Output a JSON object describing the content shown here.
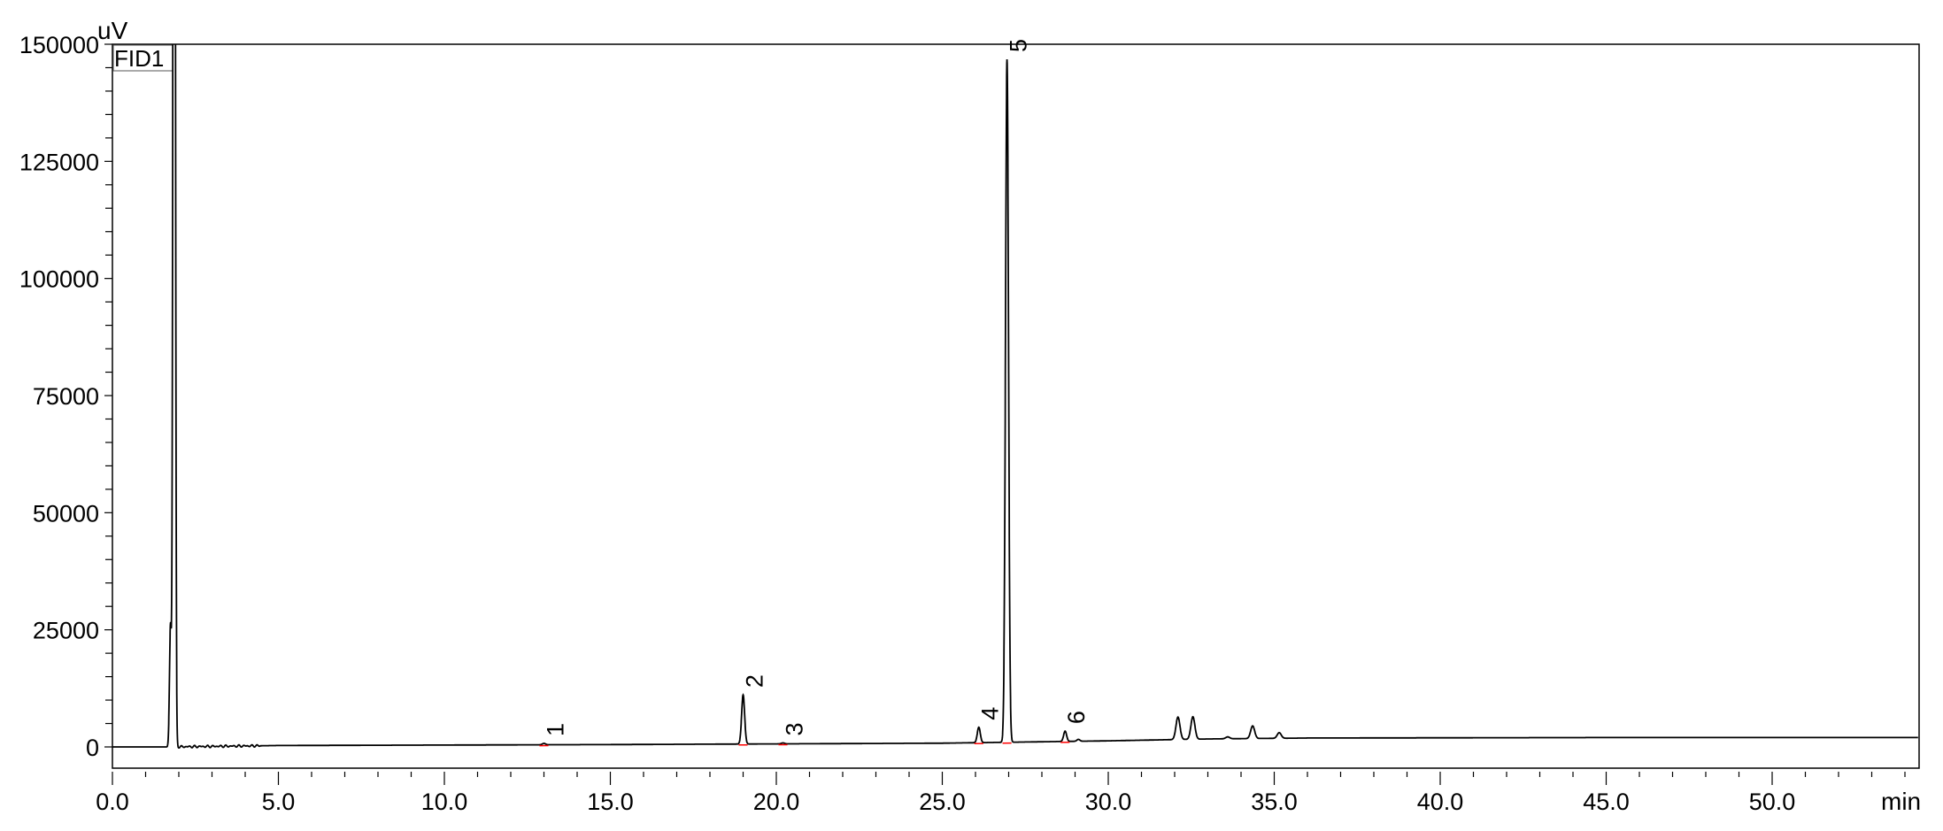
{
  "chart_data": {
    "type": "line",
    "trace_name": "FID1",
    "ylabel": "uV",
    "xlabel": "min",
    "xlim": [
      0,
      54.4
    ],
    "ylim": [
      -10000,
      150000
    ],
    "yticks": [
      0,
      25000,
      50000,
      75000,
      100000,
      125000,
      150000
    ],
    "ytick_labels": [
      "0",
      "25000",
      "50000",
      "75000",
      "100000",
      "125000",
      "150000"
    ],
    "xticks": [
      0,
      5,
      10,
      15,
      20,
      25,
      30,
      35,
      40,
      45,
      50
    ],
    "xtick_labels": [
      "0.0",
      "5.0",
      "10.0",
      "15.0",
      "20.0",
      "25.0",
      "30.0",
      "35.0",
      "40.0",
      "45.0",
      "50.0"
    ],
    "grid": false,
    "baseline": [
      [
        0,
        0
      ],
      [
        1.7,
        0
      ],
      [
        5,
        300
      ],
      [
        15,
        500
      ],
      [
        25,
        800
      ],
      [
        28,
        1100
      ],
      [
        30,
        1300
      ],
      [
        33,
        1700
      ],
      [
        36,
        1900
      ],
      [
        45,
        2000
      ],
      [
        54.4,
        2000
      ]
    ],
    "peaks": [
      {
        "rt": 1.75,
        "height": 26000,
        "label": ""
      },
      {
        "rt": 1.86,
        "height": 400000,
        "label": ""
      },
      {
        "rt": 13.0,
        "height": 300,
        "label": "1"
      },
      {
        "rt": 19.0,
        "height": 10500,
        "label": "2"
      },
      {
        "rt": 20.2,
        "height": 200,
        "label": "3"
      },
      {
        "rt": 26.1,
        "height": 3300,
        "label": "4"
      },
      {
        "rt": 26.95,
        "height": 145800,
        "label": "5"
      },
      {
        "rt": 28.7,
        "height": 2200,
        "label": "6"
      },
      {
        "rt": 29.1,
        "height": 400,
        "label": ""
      },
      {
        "rt": 32.1,
        "height": 4800,
        "label": ""
      },
      {
        "rt": 32.55,
        "height": 4800,
        "label": ""
      },
      {
        "rt": 33.6,
        "height": 400,
        "label": ""
      },
      {
        "rt": 34.35,
        "height": 2700,
        "label": ""
      },
      {
        "rt": 35.15,
        "height": 1200,
        "label": ""
      }
    ],
    "colors": {
      "trace": "#000000",
      "baseline_marks": "#ff0000"
    }
  }
}
